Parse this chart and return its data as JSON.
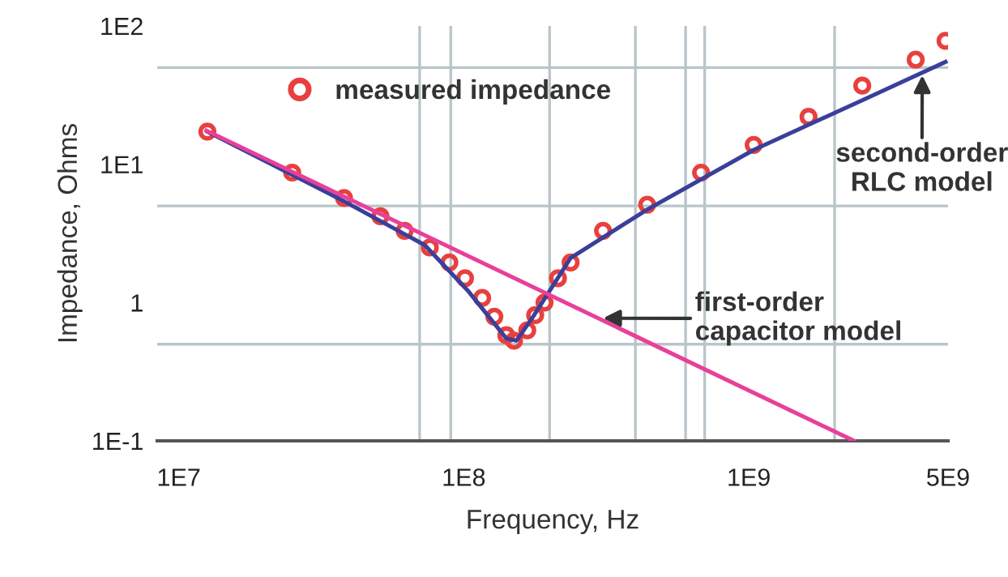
{
  "chart_data": {
    "type": "line",
    "xlabel": "Frequency, Hz",
    "ylabel": "Impedance, Ohms",
    "log": "xy",
    "xlim": [
      8400000,
      5000000000
    ],
    "ylim": [
      0.1,
      100
    ],
    "xticks": [
      {
        "value": 10000000,
        "label": "1E7"
      },
      {
        "value": 100000000,
        "label": "1E8"
      },
      {
        "value": 1000000000,
        "label": "1E9"
      },
      {
        "value": 5000000000,
        "label": "5E9"
      }
    ],
    "yticks": [
      {
        "value": 0.1,
        "label": "1E-1"
      },
      {
        "value": 1,
        "label": "1"
      },
      {
        "value": 10,
        "label": "1E1"
      },
      {
        "value": 100,
        "label": "1E2"
      }
    ],
    "grid": false,
    "legend": "top",
    "ref_lines": [
      {
        "axis": "x",
        "value": 70000000,
        "color": "#b9c5c9"
      },
      {
        "axis": "x",
        "value": 90000000,
        "color": "#b9c5c9"
      },
      {
        "axis": "x",
        "value": 200000000,
        "color": "#b9c5c9"
      },
      {
        "axis": "x",
        "value": 400000000,
        "color": "#b9c5c9"
      },
      {
        "axis": "x",
        "value": 600000000,
        "color": "#b9c5c9"
      },
      {
        "axis": "x",
        "value": 700000000,
        "color": "#b9c5c9"
      },
      {
        "axis": "x",
        "value": 2000000000,
        "color": "#b9c5c9"
      },
      {
        "axis": "y",
        "value": 0.5,
        "color": "#b9c5c9"
      },
      {
        "axis": "y",
        "value": 5,
        "color": "#b9c5c9"
      },
      {
        "axis": "y",
        "value": 50,
        "color": "#b9c5c9"
      }
    ],
    "series": [
      {
        "name": "measured impedance",
        "type": "scatter",
        "marker": "circle",
        "color": "#e8403f",
        "x": [
          12600000,
          25000000,
          38000000,
          51000000,
          62000000,
          76000000,
          89000000,
          101000000,
          116000000,
          128000000,
          141000000,
          150000000,
          167000000,
          178000000,
          192000000,
          214000000,
          237000000,
          308000000,
          440000000,
          680000000,
          1040000000,
          1620000000,
          2500000000,
          3850000000,
          4900000000
        ],
        "values": [
          17.2,
          8.7,
          5.7,
          4.2,
          3.3,
          2.5,
          1.95,
          1.5,
          1.08,
          0.79,
          0.58,
          0.53,
          0.63,
          0.81,
          1.0,
          1.5,
          1.95,
          3.3,
          5.1,
          8.7,
          13.8,
          22,
          37,
          57,
          78
        ]
      },
      {
        "color": "#3a3f9a",
        "x": [
          12600000,
          38000000,
          73000000,
          104000000,
          141000000,
          153000000,
          175000000,
          237000000,
          440000000,
          1040000000,
          2500000000,
          4900000000
        ],
        "values": [
          17.2,
          5.4,
          2.6,
          1.2,
          0.55,
          0.53,
          0.79,
          2.1,
          4.7,
          12.7,
          29,
          55
        ]
      },
      {
        "color": "#e8409a",
        "x": [
          12500000,
          2340000000
        ],
        "values": [
          17.5,
          0.1
        ]
      }
    ],
    "annotations": [
      {
        "text": "second-order\nRLC model",
        "x": 4060000000,
        "y": 44
      },
      {
        "text": "first-order\ncapacitor model",
        "x": 308000000,
        "y": 0.77
      }
    ]
  }
}
